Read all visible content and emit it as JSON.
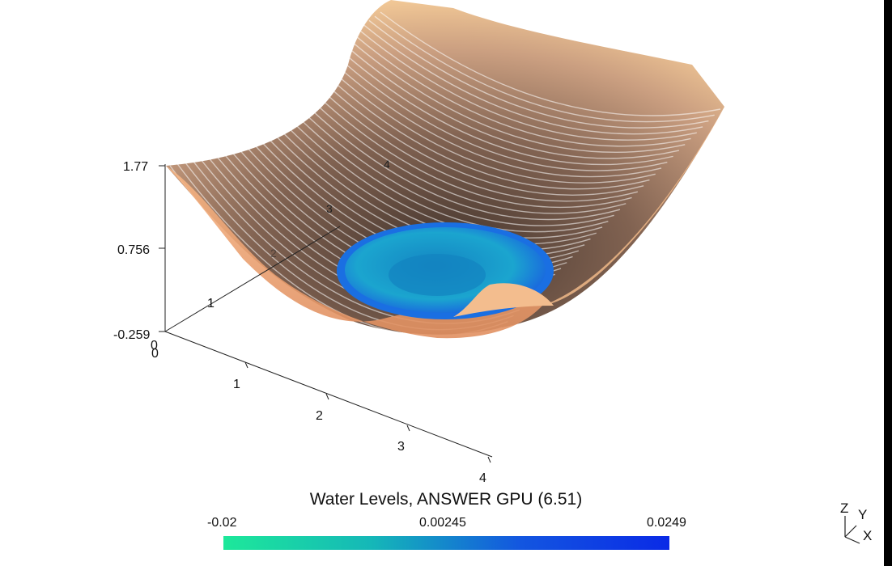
{
  "chart_data": {
    "type": "surface3d",
    "title": "Water Levels, ANSWER GPU (6.51)",
    "axes": {
      "x": {
        "ticks": [
          "0",
          "1",
          "2",
          "3",
          "4"
        ],
        "range": [
          0,
          4
        ]
      },
      "y": {
        "ticks": [
          "0",
          "1",
          "2",
          "3",
          "4"
        ],
        "range": [
          0,
          4
        ]
      },
      "z": {
        "ticks": [
          "-0.259",
          "0.756",
          "1.77"
        ],
        "range": [
          -0.259,
          1.77
        ]
      }
    },
    "surfaces": [
      {
        "name": "",
        "kind": "bowl terrain",
        "color": "#e8a77a",
        "z_min": -0.259,
        "z_max": 1.77
      },
      {
        "name": "",
        "kind": "water level",
        "color": "#1a9ccf"
      }
    ],
    "colorbar": {
      "labels": [
        "-0.02",
        "0.00245",
        "0.0249"
      ],
      "range": [
        -0.02,
        0.0249
      ],
      "colors": [
        "#1de89a",
        "#15b7b8",
        "#1356e0",
        "#0a2ae6"
      ]
    },
    "orientation_axes": {
      "labels": [
        "Z",
        "Y",
        "X"
      ]
    }
  }
}
